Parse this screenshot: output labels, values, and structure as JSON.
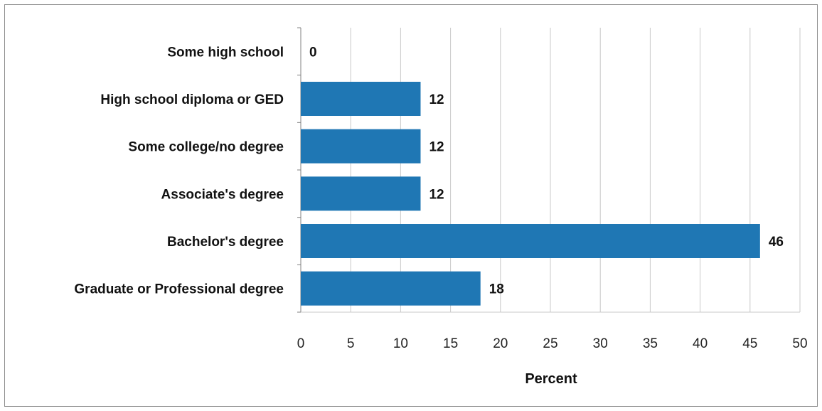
{
  "chart_data": {
    "type": "bar",
    "orientation": "horizontal",
    "categories": [
      "Some high school",
      "High school diploma or GED",
      "Some college/no degree",
      "Associate's degree",
      "Bachelor's degree",
      "Graduate or Professional degree"
    ],
    "values": [
      0,
      12,
      12,
      12,
      46,
      18
    ],
    "title": "",
    "xlabel": "Percent",
    "ylabel": "",
    "xlim": [
      0,
      50
    ],
    "xticks": [
      0,
      5,
      10,
      15,
      20,
      25,
      30,
      35,
      40,
      45,
      50
    ],
    "grid": "vertical",
    "legend": "none",
    "bar_color": "#1f77b4"
  }
}
